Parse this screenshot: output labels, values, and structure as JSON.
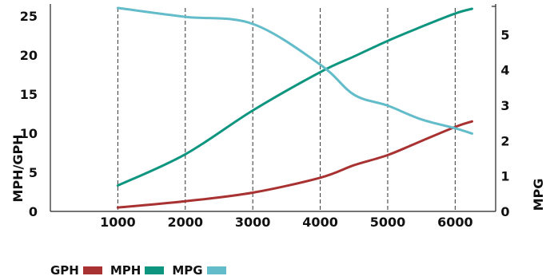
{
  "chart_data": {
    "type": "line",
    "x": [
      1000,
      2000,
      3000,
      4000,
      4500,
      5000,
      5500,
      6000,
      6250
    ],
    "xticks": [
      "1000",
      "2000",
      "3000",
      "4000",
      "5000",
      "6000"
    ],
    "xlim": [
      0,
      6600
    ],
    "y_left_ticks": [
      "0",
      "5",
      "10",
      "15",
      "20",
      "25"
    ],
    "y_left_lim": [
      0,
      26
    ],
    "y_right_ticks": [
      "0",
      "1",
      "2",
      "3",
      "4",
      "5"
    ],
    "y_right_lim": [
      0,
      5.75
    ],
    "ylabel_left": "MPH/GPH",
    "ylabel_right": "MPG",
    "series": [
      {
        "name": "GPH",
        "axis": "left",
        "color": "#a83232",
        "values": [
          0.5,
          1.3,
          2.4,
          4.3,
          5.9,
          7.2,
          9.0,
          10.8,
          11.5
        ]
      },
      {
        "name": "MPH",
        "axis": "left",
        "color": "#0e9580",
        "values": [
          3.3,
          7.3,
          12.9,
          17.8,
          19.8,
          21.8,
          23.6,
          25.3,
          25.9
        ]
      },
      {
        "name": "MPG",
        "axis": "right",
        "color": "#63bcc9",
        "values": [
          5.75,
          5.5,
          5.3,
          4.15,
          3.3,
          2.99,
          2.6,
          2.35,
          2.2
        ]
      }
    ],
    "grid": "vertical dashed",
    "legend_position": "bottom-left"
  }
}
